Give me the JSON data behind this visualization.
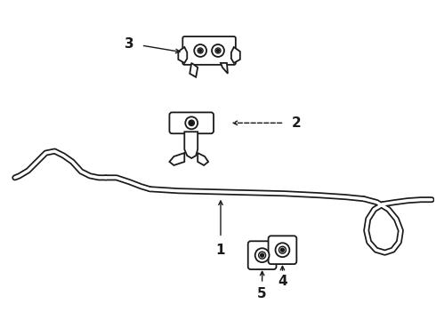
{
  "background_color": "#ffffff",
  "line_color": "#1a1a1a",
  "label_fontsize": 11,
  "figsize": [
    4.9,
    3.6
  ],
  "dpi": 100,
  "bar_outer_lw": 5,
  "bar_inner_lw": 2.5,
  "component_lw": 1.3
}
